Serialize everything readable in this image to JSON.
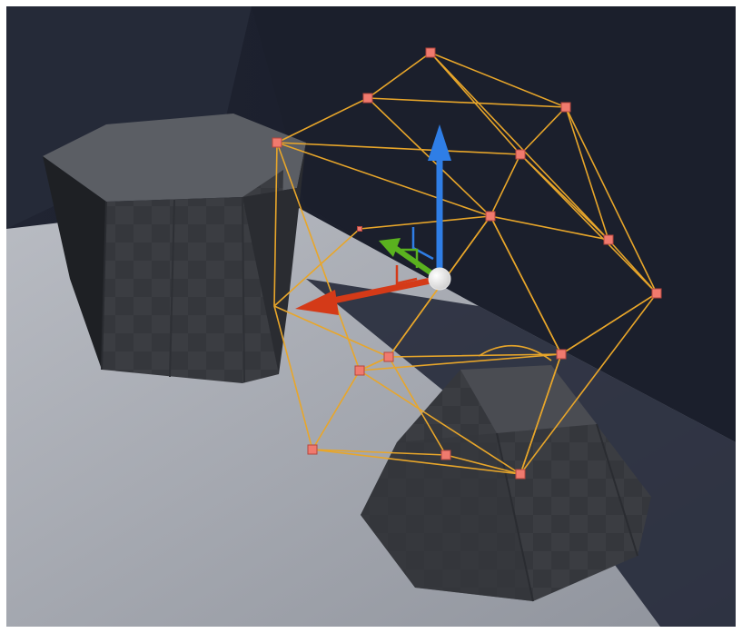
{
  "viewport": {
    "accent_wire": "#e8a62a",
    "vertex_color": "#f07a6e",
    "floor_color": "#a9acb4",
    "wall_color": "#1a1e2a",
    "object_color": "#3a3c41"
  },
  "gizmo": {
    "icons": {
      "x": "red-arrow-icon",
      "y": "green-arrow-icon",
      "z": "blue-arrow-icon",
      "pivot": "white-sphere-icon"
    },
    "colors": {
      "x": "#d43a18",
      "y": "#5ab21f",
      "z": "#2f7ee6",
      "pivot": "#f4f4f4"
    }
  }
}
